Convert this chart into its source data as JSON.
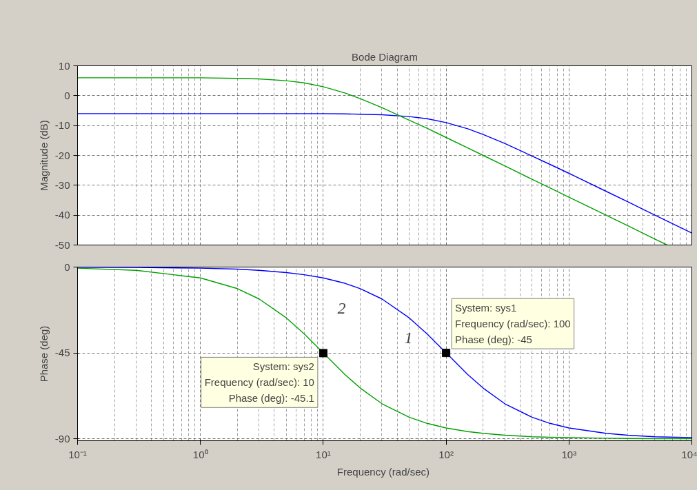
{
  "chart_data": [
    {
      "type": "line",
      "title": "Bode Diagram",
      "ylabel": "Magnitude (dB)",
      "log": "x",
      "grid": true,
      "line_style": "solid",
      "tick_labels": "y",
      "xlim": [
        0.1,
        10000
      ],
      "ylim": [
        -50,
        10
      ],
      "yticks": [
        10,
        0,
        -10,
        -20,
        -30,
        -40,
        -50
      ],
      "x": [
        0.1,
        0.3,
        1,
        2,
        3,
        5,
        7,
        10,
        15,
        20,
        30,
        50,
        70,
        100,
        150,
        200,
        300,
        500,
        700,
        1000,
        2000,
        3000,
        5000,
        10000
      ],
      "series": [
        {
          "color": "#0000ff",
          "values": [
            -6.0,
            -6.0,
            -6.0,
            -6.0,
            -6.0,
            -6.0,
            -6.0,
            -6.0,
            -6.1,
            -6.2,
            -6.4,
            -7.0,
            -7.7,
            -9.0,
            -11.1,
            -13.0,
            -16.0,
            -20.2,
            -23.0,
            -26.0,
            -32.0,
            -35.5,
            -40.0,
            -46.0
          ]
        },
        {
          "color": "#00a000",
          "x": [
            0.1,
            0.3,
            1,
            2,
            3,
            5,
            7,
            10,
            15,
            20,
            30,
            50,
            70,
            100,
            150,
            200,
            300,
            500,
            700,
            1000,
            2000,
            3000,
            5000,
            6300
          ],
          "values": [
            6.0,
            6.0,
            6.0,
            5.8,
            5.6,
            5.0,
            4.3,
            3.0,
            0.9,
            -1.0,
            -4.0,
            -8.2,
            -10.9,
            -14.0,
            -17.5,
            -20.0,
            -23.5,
            -28.0,
            -30.9,
            -34.0,
            -40.0,
            -43.5,
            -48.0,
            -50.0
          ]
        }
      ]
    },
    {
      "type": "line",
      "xlabel": "Frequency  (rad/sec)",
      "ylabel": "Phase (deg)",
      "log": "x",
      "grid": true,
      "line_style": "solid",
      "xlim": [
        0.1,
        10000
      ],
      "ylim": [
        -91,
        0
      ],
      "xticks": [
        {
          "value": 0.1,
          "label": "10⁻¹"
        },
        {
          "value": 1,
          "label": "10⁰"
        },
        {
          "value": 10,
          "label": "10¹"
        },
        {
          "value": 100,
          "label": "10²"
        },
        {
          "value": 1000,
          "label": "10³"
        },
        {
          "value": 10000,
          "label": "10⁴"
        }
      ],
      "yticks": [
        0,
        -45,
        -90
      ],
      "x": [
        0.1,
        0.3,
        1,
        2,
        3,
        5,
        7,
        10,
        15,
        20,
        30,
        50,
        70,
        100,
        150,
        200,
        300,
        500,
        700,
        1000,
        2000,
        3000,
        5000,
        10000
      ],
      "series": [
        {
          "color": "#0000ff",
          "values": [
            -0.1,
            -0.2,
            -0.6,
            -1.1,
            -1.7,
            -2.9,
            -4.0,
            -5.7,
            -8.5,
            -11.3,
            -16.7,
            -26.6,
            -35.0,
            -45.0,
            -56.3,
            -63.4,
            -71.6,
            -78.7,
            -81.9,
            -84.3,
            -87.1,
            -88.1,
            -88.9,
            -89.4
          ]
        },
        {
          "color": "#00a000",
          "values": [
            -0.6,
            -1.7,
            -5.7,
            -11.3,
            -16.7,
            -26.6,
            -35.0,
            -45.0,
            -56.3,
            -63.4,
            -71.6,
            -78.7,
            -81.9,
            -84.3,
            -86.2,
            -87.1,
            -88.1,
            -88.9,
            -89.2,
            -89.4,
            -89.7,
            -89.8,
            -89.9,
            -89.9
          ]
        },
        {
          "type": "scatter",
          "marker": "square",
          "color": "#000000",
          "x": [
            100,
            10
          ],
          "values": [
            -45,
            -45.1
          ]
        }
      ],
      "annotations": [
        {
          "text": "System: sys1\nFrequency (rad/sec): 100\nPhase (deg): -45",
          "x": 100,
          "y": -45
        },
        {
          "text": "System: sys2\nFrequency (rad/sec): 10\nPhase (deg): -45.1",
          "x": 10,
          "y": -45.1
        },
        "2",
        "1"
      ]
    }
  ]
}
